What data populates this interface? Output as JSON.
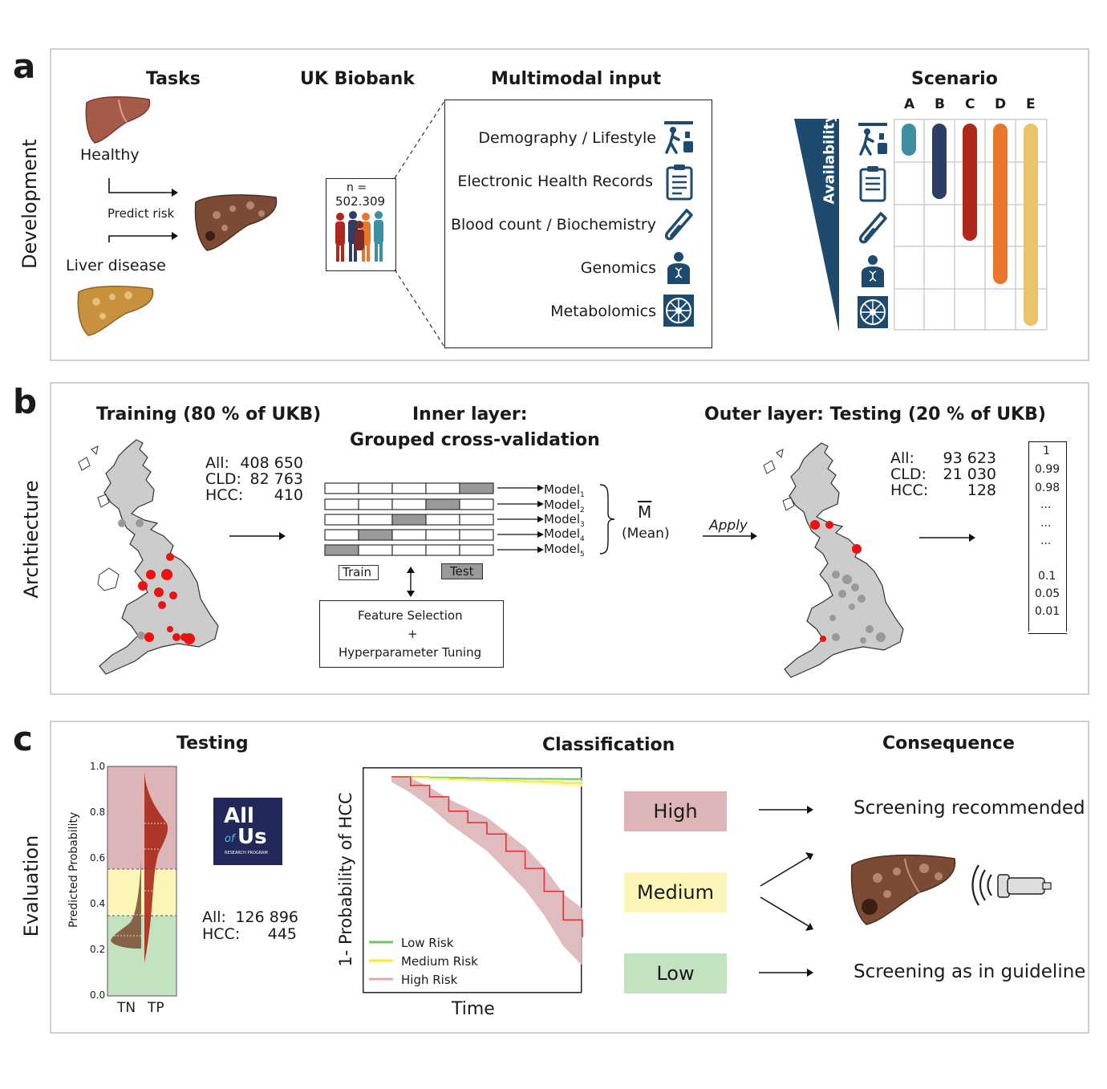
{
  "panel_a": {
    "letter": "a",
    "side_label": "Development",
    "tasks": {
      "heading": "Tasks",
      "healthy": "Healthy",
      "predict": "Predict risk",
      "liver_disease": "Liver disease"
    },
    "biobank": {
      "heading": "UK Biobank",
      "n_label": "n =",
      "n_value": "502.309"
    },
    "multimodal": {
      "heading": "Multimodal input",
      "items": [
        "Demography  / Lifestyle",
        "Electronic Health Records",
        "Blood count / Biochemistry",
        "Genomics",
        "Metabolomics"
      ]
    },
    "scenario": {
      "heading": "Scenario",
      "columns": [
        "A",
        "B",
        "C",
        "D",
        "E"
      ],
      "availability": "Availability",
      "bar_colors": [
        "#3e8fa3",
        "#2e3d66",
        "#b0271b",
        "#e8772c",
        "#ebc36a"
      ],
      "bar_rows_covered": [
        1,
        2,
        3,
        4,
        5
      ]
    }
  },
  "panel_b": {
    "letter": "b",
    "side_label": "Archtiecture",
    "training": {
      "heading": "Training (80 % of UKB)",
      "labels": [
        "All:",
        "CLD:",
        "HCC:"
      ],
      "values": [
        "408 650",
        "82 763",
        "410"
      ]
    },
    "inner": {
      "heading_line1": "Inner layer:",
      "heading_line2": "Grouped cross-validation",
      "models": [
        "Model",
        "Model",
        "Model",
        "Model",
        "Model"
      ],
      "model_subs": [
        "1",
        "2",
        "3",
        "4",
        "5"
      ],
      "train": "Train",
      "test": "Test",
      "feature_line1": "Feature Selection",
      "feature_plus": "+",
      "feature_line2": "Hyperparameter Tuning",
      "mean_symbol": "M",
      "mean_label": "(Mean)",
      "apply": "Apply"
    },
    "outer": {
      "heading": "Outer layer: Testing (20 % of UKB)",
      "labels": [
        "All:",
        "CLD:",
        "HCC:"
      ],
      "values": [
        "93 623",
        "21 030",
        "128"
      ],
      "vector": [
        "1",
        "0.99",
        "0.98",
        "...",
        "...",
        "...",
        "0.1",
        "0.05",
        "0.01"
      ]
    }
  },
  "panel_c": {
    "letter": "c",
    "side_label": "Evaluation",
    "testing": {
      "heading": "Testing",
      "y_label": "Predicted Probability",
      "y_ticks": [
        "0.0",
        "0.2",
        "0.4",
        "0.6",
        "0.8",
        "1.0"
      ],
      "x_labels": [
        "TN",
        "TP"
      ],
      "logo_line1": "All",
      "logo_of": "of",
      "logo_us": "Us",
      "logo_sub": "RESEARCH PROGRAM",
      "stats_labels": [
        "All:",
        "HCC:"
      ],
      "stats_values": [
        "126 896",
        "445"
      ]
    },
    "classification": {
      "heading": "Classification",
      "y_label": "1- Probability of HCC",
      "x_label": "Time",
      "legend": [
        "Low Risk",
        "Medium Risk",
        "High Risk"
      ],
      "colors": {
        "low": "#6cc46c",
        "medium": "#f2ea3a",
        "high": "#e0343a"
      }
    },
    "consequence": {
      "heading": "Consequence",
      "high": "High",
      "medium": "Medium",
      "low": "Low",
      "recommended": "Screening recommended",
      "guideline": "Screening as in guideline"
    }
  },
  "chart_data": {
    "type": "line",
    "title": "Classification",
    "xlabel": "Time",
    "ylabel": "1- Probability of HCC",
    "series": [
      {
        "name": "Low Risk",
        "x": [
          0,
          1,
          2,
          3,
          4,
          5,
          6,
          7,
          8,
          9,
          10
        ],
        "values": [
          1.0,
          1.0,
          0.998,
          0.997,
          0.996,
          0.995,
          0.994,
          0.993,
          0.993,
          0.992,
          0.992
        ]
      },
      {
        "name": "Medium Risk",
        "x": [
          0,
          1,
          2,
          3,
          4,
          5,
          6,
          7,
          8,
          9,
          10
        ],
        "values": [
          1.0,
          0.998,
          0.995,
          0.992,
          0.99,
          0.988,
          0.986,
          0.984,
          0.982,
          0.978,
          0.976
        ]
      },
      {
        "name": "High Risk",
        "x": [
          0,
          1,
          2,
          3,
          4,
          5,
          6,
          7,
          8,
          9,
          10
        ],
        "values": [
          1.0,
          0.97,
          0.93,
          0.88,
          0.84,
          0.8,
          0.74,
          0.68,
          0.6,
          0.5,
          0.44
        ]
      }
    ]
  }
}
